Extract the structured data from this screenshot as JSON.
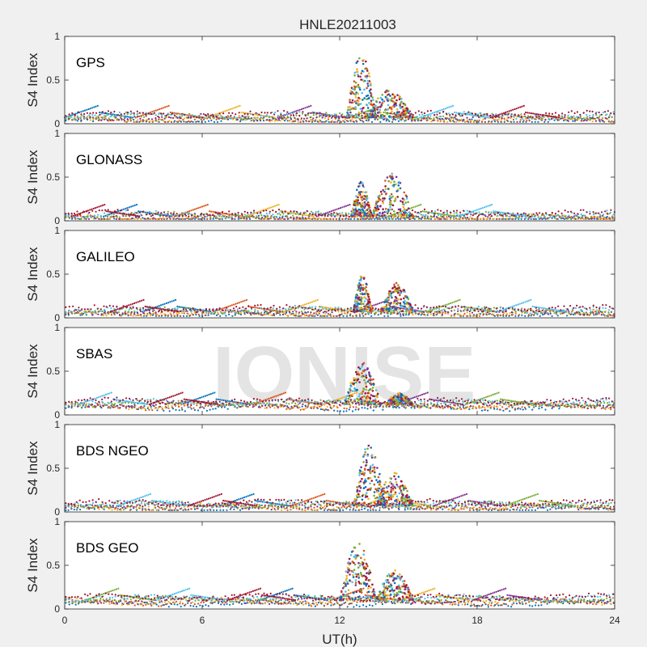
{
  "chart_data": {
    "type": "scatter",
    "title": "HNLE20211003",
    "xlabel": "UT(h)",
    "ylabel": "S4 Index",
    "xlim": [
      0,
      24
    ],
    "ylim": [
      0,
      1
    ],
    "x_ticks": [
      "0",
      "6",
      "12",
      "18",
      "24"
    ],
    "y_ticks": [
      "0",
      "0.5",
      "1"
    ],
    "watermark": "IONISE",
    "panel_background": "#ffffff",
    "series_colors": [
      "#0072BD",
      "#D95319",
      "#EDB120",
      "#7E2F8E",
      "#77AC30",
      "#4DBEEE",
      "#A2142F"
    ],
    "panels": [
      {
        "label": "GPS",
        "baseline": 0.07,
        "bursts": [
          {
            "x_start": 12.3,
            "x_end": 13.6,
            "peak": 0.8
          },
          {
            "x_start": 13.2,
            "x_end": 15.2,
            "peak": 0.4
          }
        ]
      },
      {
        "label": "GLONASS",
        "baseline": 0.05,
        "bursts": [
          {
            "x_start": 12.5,
            "x_end": 13.4,
            "peak": 0.45
          },
          {
            "x_start": 13.4,
            "x_end": 15.2,
            "peak": 0.55
          }
        ]
      },
      {
        "label": "GALILEO",
        "baseline": 0.07,
        "bursts": [
          {
            "x_start": 12.6,
            "x_end": 13.4,
            "peak": 0.5
          },
          {
            "x_start": 13.8,
            "x_end": 15.2,
            "peak": 0.4
          }
        ]
      },
      {
        "label": "SBAS",
        "baseline": 0.12,
        "bursts": [
          {
            "x_start": 12.2,
            "x_end": 13.8,
            "peak": 0.6
          },
          {
            "x_start": 14.0,
            "x_end": 15.2,
            "peak": 0.25
          }
        ]
      },
      {
        "label": "BDS NGEO",
        "baseline": 0.07,
        "bursts": [
          {
            "x_start": 12.6,
            "x_end": 14.0,
            "peak": 0.78
          },
          {
            "x_start": 13.6,
            "x_end": 15.2,
            "peak": 0.45
          }
        ]
      },
      {
        "label": "BDS GEO",
        "baseline": 0.1,
        "bursts": [
          {
            "x_start": 12.0,
            "x_end": 13.6,
            "peak": 0.76
          },
          {
            "x_start": 13.6,
            "x_end": 15.2,
            "peak": 0.45
          }
        ]
      }
    ]
  }
}
